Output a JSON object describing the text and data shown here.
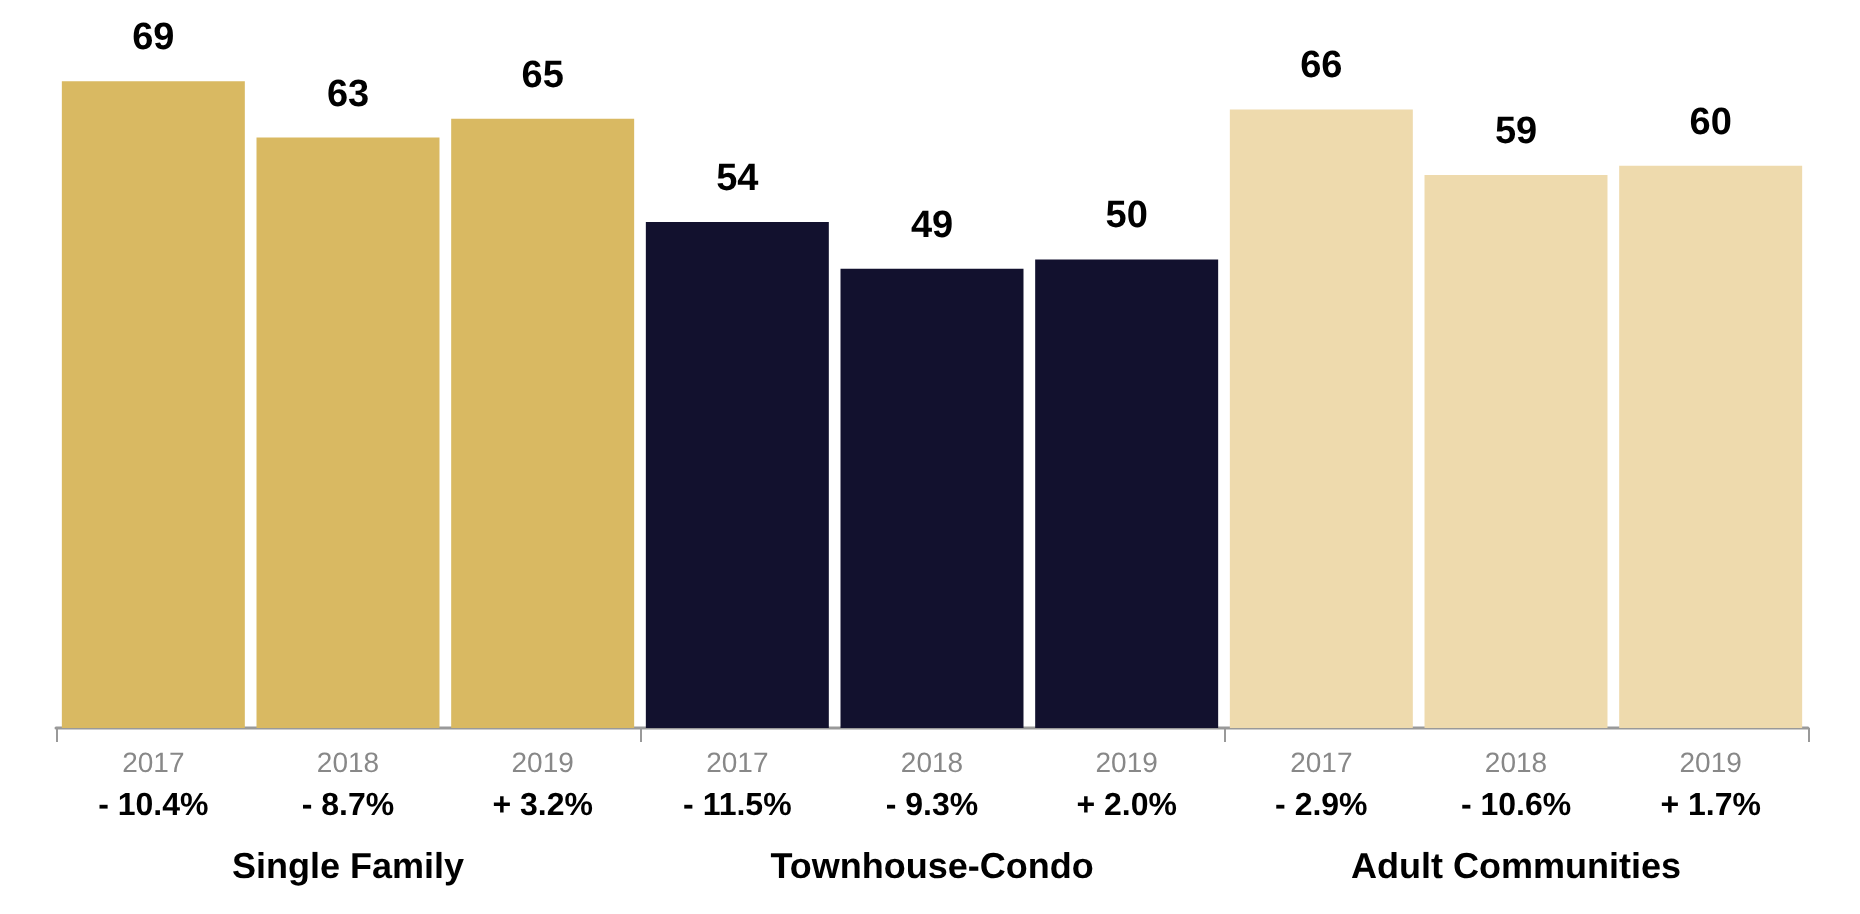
{
  "chart_data": {
    "type": "bar",
    "categories": [
      "2017",
      "2018",
      "2019",
      "2017",
      "2018",
      "2019",
      "2017",
      "2018",
      "2019"
    ],
    "series": [
      {
        "color": "#d9b962",
        "values": [
          69,
          63,
          65,
          null,
          null,
          null,
          null,
          null,
          null
        ]
      },
      {
        "color": "#12112e",
        "values": [
          null,
          null,
          null,
          54,
          49,
          50,
          null,
          null,
          null
        ]
      },
      {
        "color": "#eedaad",
        "values": [
          null,
          null,
          null,
          null,
          null,
          null,
          66,
          59,
          60
        ]
      }
    ],
    "annotations": [
      "- 10.4%",
      "- 8.7%",
      "+ 3.2%",
      "- 11.5%",
      "- 9.3%",
      "+ 2.0%",
      "- 2.9%",
      "- 10.6%",
      "+ 1.7%",
      "Single Family",
      "Townhouse-Condo",
      "Adult Communities"
    ],
    "data_labels": true,
    "grid": false
  }
}
